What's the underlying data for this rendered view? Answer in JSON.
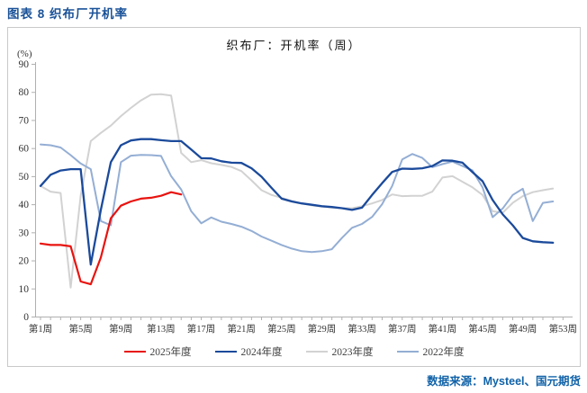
{
  "page": {
    "title": "图表 8 织布厂开机率",
    "source": "数据来源：Mysteel、国元期货"
  },
  "chart": {
    "title": "织布厂：开机率（周）",
    "unit_label": "(%)"
  },
  "colors": {
    "heading": "#1a5298",
    "source": "#1062a8",
    "axis": "#b0b0b0",
    "tick_text": "#333333",
    "legend_text": "#404040",
    "panel_border": "#c9c9c9"
  },
  "chart_data": {
    "type": "line",
    "title": "织布厂：开机率（周）",
    "ylabel": "(%)",
    "ylim": [
      0,
      90
    ],
    "ytick_step": 10,
    "x_axis": "week of year",
    "x_range": [
      1,
      53
    ],
    "xtick_weeks": [
      1,
      5,
      9,
      13,
      17,
      21,
      25,
      29,
      33,
      37,
      41,
      45,
      49,
      53
    ],
    "xtick_labels": [
      "第1周",
      "第5周",
      "第9周",
      "第13周",
      "第17周",
      "第21周",
      "第25周",
      "第29周",
      "第33周",
      "第37周",
      "第41周",
      "第45周",
      "第49周",
      "第53周"
    ],
    "grid": false,
    "legend_position": "bottom",
    "legend_order": [
      "2025年度",
      "2024年度",
      "2023年度",
      "2022年度"
    ],
    "series": [
      {
        "name": "2023年度",
        "color": "#d2d2d2",
        "width": 2,
        "start_week": 1,
        "values": [
          46.5,
          44.5,
          44,
          10.3,
          43,
          62.5,
          65.4,
          68,
          71.4,
          74.3,
          77,
          79,
          79.2,
          78.7,
          58.3,
          55,
          55.7,
          54.6,
          54,
          53.3,
          51.8,
          48.5,
          45,
          43.3,
          42.3,
          41.2,
          40.3,
          39.6,
          39.2,
          38.8,
          38.6,
          38.6,
          39.3,
          40.3,
          41.5,
          43.5,
          42.9,
          43,
          43,
          44.5,
          49.5,
          50,
          48,
          46,
          43.3,
          37.5,
          37,
          40.5,
          42.9,
          44.3,
          45,
          45.6
        ]
      },
      {
        "name": "2022年度",
        "color": "#94aed4",
        "width": 2,
        "start_week": 1,
        "values": [
          61.3,
          61,
          60.2,
          57.5,
          54.5,
          52.5,
          34,
          32.5,
          55,
          57.3,
          57.6,
          57.5,
          57.2,
          50,
          45.3,
          37.5,
          33.2,
          35.3,
          33.8,
          33,
          32,
          30.5,
          28.5,
          27,
          25.5,
          24.2,
          23.3,
          23,
          23.3,
          24,
          28,
          31.6,
          33,
          35.5,
          40,
          46.5,
          56,
          57.9,
          56.5,
          53.2,
          54.3,
          55.2,
          53.6,
          52,
          46,
          35.4,
          38.5,
          43.3,
          45.5,
          34,
          40.5,
          41
        ]
      },
      {
        "name": "2024年度",
        "color": "#1b4a9b",
        "width": 2.3,
        "start_week": 1,
        "values": [
          46.5,
          50.5,
          52,
          52.5,
          52.5,
          18.5,
          38,
          55,
          61,
          62.7,
          63.2,
          63.2,
          62.8,
          62.5,
          62.5,
          59.5,
          56.4,
          56.3,
          55.3,
          54.8,
          54.7,
          52.8,
          49.8,
          45.8,
          42,
          41,
          40.3,
          39.8,
          39.3,
          39,
          38.6,
          38,
          38.8,
          43.3,
          47.5,
          51.5,
          52.7,
          52.6,
          52.8,
          53.6,
          55.6,
          55.5,
          54.8,
          51.4,
          48.2,
          41.5,
          36.4,
          32.5,
          28,
          26.8,
          26.5,
          26.3
        ]
      },
      {
        "name": "2025年度",
        "color": "#e8130f",
        "width": 2.2,
        "start_week": 1,
        "values": [
          26,
          25.5,
          25.5,
          25,
          12.5,
          11.5,
          21,
          35,
          39.5,
          41,
          42,
          42.3,
          43,
          44.3,
          43.5
        ]
      }
    ]
  }
}
